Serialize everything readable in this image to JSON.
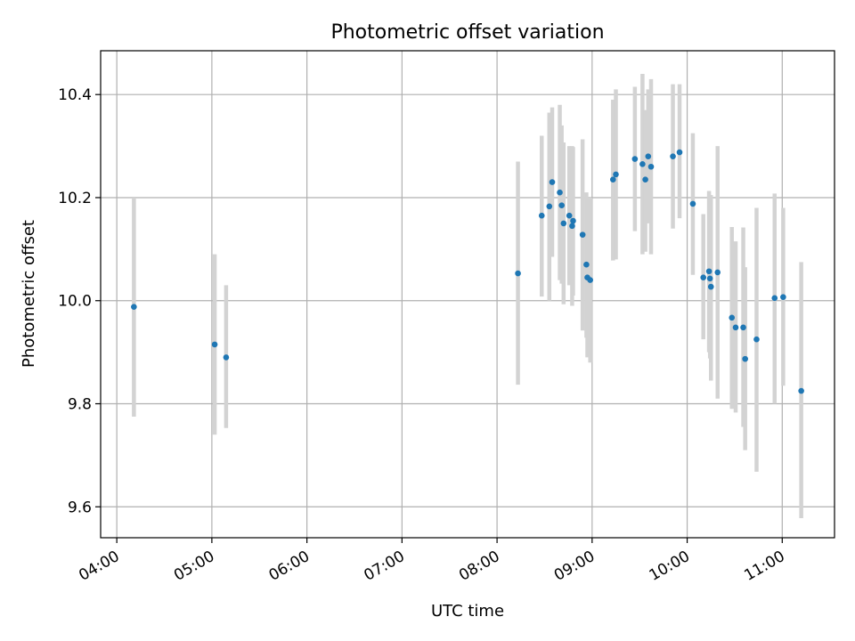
{
  "chart_data": {
    "type": "scatter",
    "title": "Photometric offset variation",
    "xlabel": "UTC time",
    "ylabel": "Photometric offset",
    "x_unit": "hours UTC",
    "xlim": [
      3.83,
      11.55
    ],
    "ylim": [
      9.54,
      10.485
    ],
    "x_ticks": [
      {
        "value": 4,
        "label": "04:00"
      },
      {
        "value": 5,
        "label": "05:00"
      },
      {
        "value": 6,
        "label": "06:00"
      },
      {
        "value": 7,
        "label": "07:00"
      },
      {
        "value": 8,
        "label": "08:00"
      },
      {
        "value": 9,
        "label": "09:00"
      },
      {
        "value": 10,
        "label": "10:00"
      },
      {
        "value": 11,
        "label": "11:00"
      }
    ],
    "y_ticks": [
      {
        "value": 9.6,
        "label": "9.6"
      },
      {
        "value": 9.8,
        "label": "9.8"
      },
      {
        "value": 10.0,
        "label": "10.0"
      },
      {
        "value": 10.2,
        "label": "10.2"
      },
      {
        "value": 10.4,
        "label": "10.4"
      }
    ],
    "grid": true,
    "point_color": "#1f77b4",
    "errorbar_color": "#d3d3d3",
    "points": [
      {
        "x": 4.18,
        "y": 9.988,
        "lo": 9.775,
        "hi": 10.2
      },
      {
        "x": 5.03,
        "y": 9.915,
        "lo": 9.74,
        "hi": 10.09
      },
      {
        "x": 5.15,
        "y": 9.89,
        "lo": 9.753,
        "hi": 10.03
      },
      {
        "x": 8.22,
        "y": 10.053,
        "lo": 9.837,
        "hi": 10.27
      },
      {
        "x": 8.47,
        "y": 10.165,
        "lo": 10.008,
        "hi": 10.32
      },
      {
        "x": 8.55,
        "y": 10.183,
        "lo": 10.0,
        "hi": 10.365
      },
      {
        "x": 8.58,
        "y": 10.23,
        "lo": 10.085,
        "hi": 10.375
      },
      {
        "x": 8.66,
        "y": 10.21,
        "lo": 10.04,
        "hi": 10.38
      },
      {
        "x": 8.68,
        "y": 10.185,
        "lo": 10.033,
        "hi": 10.34
      },
      {
        "x": 8.7,
        "y": 10.15,
        "lo": 9.993,
        "hi": 10.307
      },
      {
        "x": 8.76,
        "y": 10.165,
        "lo": 10.03,
        "hi": 10.3
      },
      {
        "x": 8.79,
        "y": 10.145,
        "lo": 9.99,
        "hi": 10.3
      },
      {
        "x": 8.8,
        "y": 10.155,
        "lo": 10.01,
        "hi": 10.298
      },
      {
        "x": 8.9,
        "y": 10.128,
        "lo": 9.942,
        "hi": 10.313
      },
      {
        "x": 8.94,
        "y": 10.07,
        "lo": 9.928,
        "hi": 10.21
      },
      {
        "x": 8.95,
        "y": 10.045,
        "lo": 9.89,
        "hi": 10.2
      },
      {
        "x": 8.98,
        "y": 10.04,
        "lo": 9.88,
        "hi": 10.2
      },
      {
        "x": 9.22,
        "y": 10.235,
        "lo": 10.078,
        "hi": 10.39
      },
      {
        "x": 9.25,
        "y": 10.245,
        "lo": 10.08,
        "hi": 10.41
      },
      {
        "x": 9.45,
        "y": 10.275,
        "lo": 10.135,
        "hi": 10.415
      },
      {
        "x": 9.53,
        "y": 10.265,
        "lo": 10.09,
        "hi": 10.44
      },
      {
        "x": 9.56,
        "y": 10.235,
        "lo": 10.095,
        "hi": 10.37
      },
      {
        "x": 9.59,
        "y": 10.28,
        "lo": 10.15,
        "hi": 10.41
      },
      {
        "x": 9.62,
        "y": 10.26,
        "lo": 10.09,
        "hi": 10.43
      },
      {
        "x": 9.85,
        "y": 10.28,
        "lo": 10.14,
        "hi": 10.42
      },
      {
        "x": 9.92,
        "y": 10.288,
        "lo": 10.16,
        "hi": 10.42
      },
      {
        "x": 10.06,
        "y": 10.188,
        "lo": 10.05,
        "hi": 10.325
      },
      {
        "x": 10.17,
        "y": 10.045,
        "lo": 9.925,
        "hi": 10.168
      },
      {
        "x": 10.23,
        "y": 10.057,
        "lo": 9.9,
        "hi": 10.213
      },
      {
        "x": 10.24,
        "y": 10.043,
        "lo": 9.888,
        "hi": 10.205
      },
      {
        "x": 10.25,
        "y": 10.027,
        "lo": 9.845,
        "hi": 10.205
      },
      {
        "x": 10.32,
        "y": 10.055,
        "lo": 9.81,
        "hi": 10.3
      },
      {
        "x": 10.47,
        "y": 9.967,
        "lo": 9.79,
        "hi": 10.143
      },
      {
        "x": 10.51,
        "y": 9.948,
        "lo": 9.783,
        "hi": 10.115
      },
      {
        "x": 10.59,
        "y": 9.948,
        "lo": 9.755,
        "hi": 10.142
      },
      {
        "x": 10.61,
        "y": 9.887,
        "lo": 9.71,
        "hi": 10.065
      },
      {
        "x": 10.73,
        "y": 9.925,
        "lo": 9.668,
        "hi": 10.18
      },
      {
        "x": 10.92,
        "y": 10.005,
        "lo": 9.8,
        "hi": 10.208
      },
      {
        "x": 11.01,
        "y": 10.007,
        "lo": 9.835,
        "hi": 10.18
      },
      {
        "x": 11.2,
        "y": 9.825,
        "lo": 9.578,
        "hi": 10.075
      }
    ]
  }
}
